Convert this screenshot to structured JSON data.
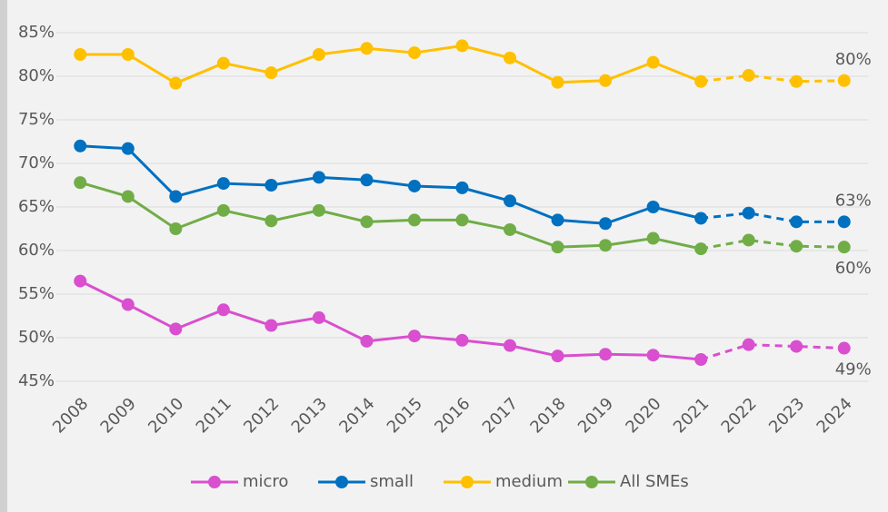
{
  "chart_data": {
    "type": "line",
    "categories": [
      "2008",
      "2009",
      "2010",
      "2011",
      "2012",
      "2013",
      "2014",
      "2015",
      "2016",
      "2017",
      "2018",
      "2019",
      "2020",
      "2021",
      "2022",
      "2023",
      "2024"
    ],
    "series": [
      {
        "name": "micro",
        "color": "#d94fcf",
        "values": [
          56.5,
          53.8,
          51.0,
          53.2,
          51.4,
          52.3,
          49.6,
          50.2,
          49.7,
          49.1,
          47.9,
          48.1,
          48.0,
          47.5,
          49.2,
          49.0,
          48.8
        ],
        "end_label": "49%"
      },
      {
        "name": "small",
        "color": "#0070c0",
        "values": [
          72.0,
          71.7,
          66.2,
          67.7,
          67.5,
          68.4,
          68.1,
          67.4,
          67.2,
          65.7,
          63.5,
          63.1,
          65.0,
          63.7,
          64.3,
          63.3,
          63.3
        ],
        "end_label": "63%"
      },
      {
        "name": "medium",
        "color": "#ffc000",
        "values": [
          82.5,
          82.5,
          79.2,
          81.5,
          80.4,
          82.5,
          83.2,
          82.7,
          83.5,
          82.1,
          79.3,
          79.5,
          81.6,
          79.4,
          80.1,
          79.4,
          79.5
        ],
        "end_label": "80%"
      },
      {
        "name": "All SMEs",
        "color": "#70ad47",
        "values": [
          67.8,
          66.2,
          62.5,
          64.6,
          63.4,
          64.6,
          63.3,
          63.5,
          63.5,
          62.4,
          60.4,
          60.6,
          61.4,
          60.2,
          61.2,
          60.5,
          60.4
        ],
        "end_label": "60%"
      }
    ],
    "dashed_from": "2021",
    "ylim": [
      45,
      85
    ],
    "yticks": [
      {
        "value": 45,
        "label": "45%"
      },
      {
        "value": 50,
        "label": "50%"
      },
      {
        "value": 55,
        "label": "55%"
      },
      {
        "value": 60,
        "label": "60%"
      },
      {
        "value": 65,
        "label": "65%"
      },
      {
        "value": 70,
        "label": "70%"
      },
      {
        "value": 75,
        "label": "75%"
      },
      {
        "value": 80,
        "label": "80%"
      },
      {
        "value": 85,
        "label": "85%"
      }
    ],
    "grid": true,
    "legend": "bottom"
  }
}
